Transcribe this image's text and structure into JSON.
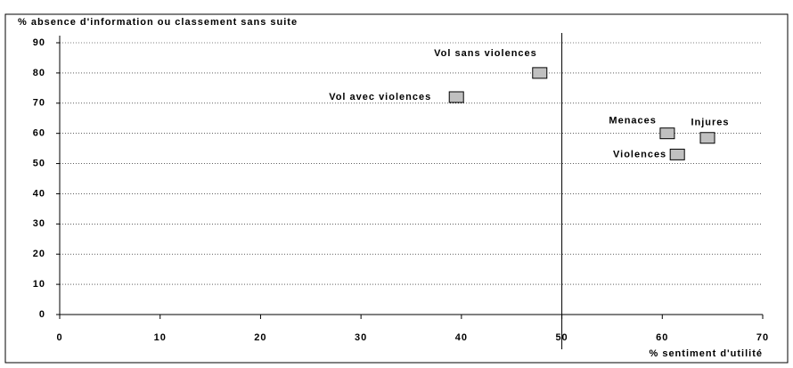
{
  "chart_data": {
    "type": "scatter",
    "y_label": "% absence d'information ou classement sans suite",
    "x_label": "% sentiment d'utilité",
    "series": [
      {
        "name": null,
        "color": "#c0c0c0",
        "labels": [
          "Vol sans violences",
          "Vol avec violences",
          "Menaces",
          "Injures",
          "Violences"
        ],
        "x": [
          47.8,
          39.5,
          60.5,
          64.5,
          61.5
        ],
        "values": [
          80,
          72,
          60,
          58.5,
          53
        ]
      }
    ],
    "xlim": [
      0,
      70
    ],
    "xticks": [
      0,
      10,
      20,
      30,
      40,
      50,
      60,
      70
    ],
    "ylim": [
      0,
      90
    ],
    "yticks": [
      0,
      10,
      20,
      30,
      40,
      50,
      60,
      70,
      80,
      90
    ],
    "reference_x": 50,
    "grid": true
  }
}
